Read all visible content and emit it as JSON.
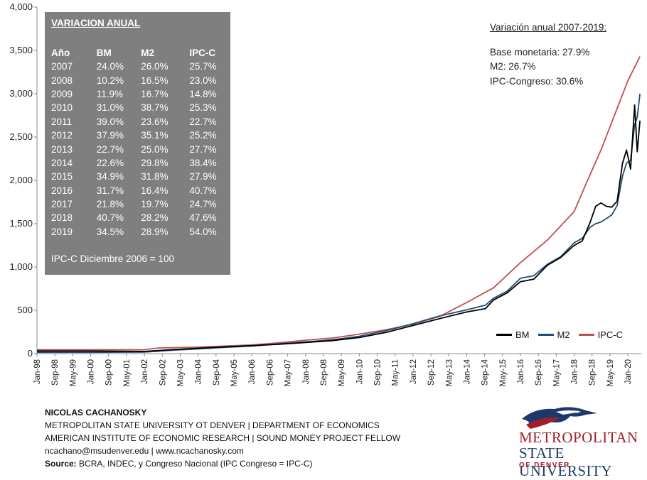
{
  "chart_data": {
    "type": "line",
    "ylim": [
      0,
      4000
    ],
    "y_ticks": [
      "0",
      "500",
      "1,000",
      "1,500",
      "2,000",
      "2,500",
      "3,000",
      "3,500",
      "4,000"
    ],
    "x_ticks": [
      "Jan-98",
      "Sep-98",
      "May-99",
      "Jan-00",
      "Sep-00",
      "May-01",
      "Jan-02",
      "Sep-02",
      "May-03",
      "Jan-04",
      "Sep-04",
      "May-05",
      "Jan-06",
      "Sep-06",
      "May-07",
      "Jan-08",
      "Sep-08",
      "May-09",
      "Jan-10",
      "Sep-10",
      "May-11",
      "Jan-12",
      "Sep-12",
      "May-13",
      "Jan-14",
      "Sep-14",
      "May-15",
      "Jan-16",
      "Sep-16",
      "May-17",
      "Jan-18",
      "Sep-18",
      "May-19",
      "Jan-20"
    ],
    "grid": false,
    "legend": "bottom-right",
    "series": [
      {
        "name": "BM",
        "color": "#000000",
        "points": [
          [
            1998.0,
            30
          ],
          [
            2000.0,
            30
          ],
          [
            2002.0,
            25
          ],
          [
            2003.0,
            45
          ],
          [
            2004.0,
            62
          ],
          [
            2005.0,
            78
          ],
          [
            2006.0,
            92
          ],
          [
            2007.0,
            108
          ],
          [
            2008.0,
            128
          ],
          [
            2009.0,
            150
          ],
          [
            2010.0,
            185
          ],
          [
            2011.0,
            245
          ],
          [
            2012.0,
            325
          ],
          [
            2013.0,
            405
          ],
          [
            2014.0,
            480
          ],
          [
            2014.7,
            520
          ],
          [
            2015.0,
            620
          ],
          [
            2015.5,
            700
          ],
          [
            2016.0,
            830
          ],
          [
            2016.5,
            860
          ],
          [
            2017.0,
            1020
          ],
          [
            2017.5,
            1110
          ],
          [
            2018.0,
            1250
          ],
          [
            2018.3,
            1300
          ],
          [
            2018.6,
            1520
          ],
          [
            2018.8,
            1700
          ],
          [
            2019.0,
            1740
          ],
          [
            2019.2,
            1700
          ],
          [
            2019.4,
            1690
          ],
          [
            2019.6,
            1760
          ],
          [
            2019.8,
            2200
          ],
          [
            2019.95,
            2350
          ],
          [
            2020.1,
            2130
          ],
          [
            2020.25,
            2870
          ],
          [
            2020.35,
            2330
          ],
          [
            2020.45,
            2690
          ]
        ]
      },
      {
        "name": "M2",
        "color": "#1f4e79",
        "points": [
          [
            1998.0,
            15
          ],
          [
            2000.0,
            15
          ],
          [
            2002.0,
            18
          ],
          [
            2003.0,
            38
          ],
          [
            2004.0,
            55
          ],
          [
            2005.0,
            72
          ],
          [
            2006.0,
            88
          ],
          [
            2007.0,
            112
          ],
          [
            2008.0,
            135
          ],
          [
            2009.0,
            160
          ],
          [
            2010.0,
            200
          ],
          [
            2011.0,
            265
          ],
          [
            2012.0,
            345
          ],
          [
            2013.0,
            435
          ],
          [
            2014.0,
            505
          ],
          [
            2014.7,
            560
          ],
          [
            2015.0,
            640
          ],
          [
            2015.5,
            720
          ],
          [
            2016.0,
            870
          ],
          [
            2016.5,
            900
          ],
          [
            2017.0,
            1030
          ],
          [
            2017.5,
            1120
          ],
          [
            2018.0,
            1280
          ],
          [
            2018.3,
            1330
          ],
          [
            2018.6,
            1460
          ],
          [
            2018.8,
            1500
          ],
          [
            2019.0,
            1520
          ],
          [
            2019.2,
            1560
          ],
          [
            2019.4,
            1600
          ],
          [
            2019.6,
            1710
          ],
          [
            2019.8,
            2050
          ],
          [
            2019.95,
            2200
          ],
          [
            2020.1,
            2230
          ],
          [
            2020.25,
            2640
          ],
          [
            2020.35,
            2730
          ],
          [
            2020.45,
            3000
          ]
        ]
      },
      {
        "name": "IPC-C",
        "color": "#c0504d",
        "points": [
          [
            1998.0,
            45
          ],
          [
            2002.0,
            45
          ],
          [
            2002.5,
            65
          ],
          [
            2004.0,
            75
          ],
          [
            2006.0,
            100
          ],
          [
            2007.0,
            125
          ],
          [
            2008.0,
            155
          ],
          [
            2009.0,
            180
          ],
          [
            2010.0,
            225
          ],
          [
            2011.0,
            275
          ],
          [
            2012.0,
            340
          ],
          [
            2013.0,
            430
          ],
          [
            2014.0,
            590
          ],
          [
            2015.0,
            760
          ],
          [
            2016.0,
            1050
          ],
          [
            2017.0,
            1310
          ],
          [
            2018.0,
            1640
          ],
          [
            2018.5,
            2000
          ],
          [
            2019.0,
            2350
          ],
          [
            2019.5,
            2750
          ],
          [
            2020.0,
            3150
          ],
          [
            2020.45,
            3430
          ]
        ]
      }
    ]
  },
  "table": {
    "title": "VARIACION ANUAL",
    "headers": [
      "Año",
      "BM",
      "M2",
      "IPC-C"
    ],
    "rows": [
      [
        "2007",
        "24.0%",
        "26.0%",
        "25.7%"
      ],
      [
        "2008",
        "10.2%",
        "16.5%",
        "23.0%"
      ],
      [
        "2009",
        "11.9%",
        "16.7%",
        "14.8%"
      ],
      [
        "2010",
        "31.0%",
        "38.7%",
        "25.3%"
      ],
      [
        "2011",
        "39.0%",
        "23.6%",
        "22.7%"
      ],
      [
        "2012",
        "37.9%",
        "35.1%",
        "25.2%"
      ],
      [
        "2013",
        "22.7%",
        "25.0%",
        "27.7%"
      ],
      [
        "2014",
        "22.6%",
        "29.8%",
        "38.4%"
      ],
      [
        "2015",
        "34.9%",
        "31.8%",
        "27.9%"
      ],
      [
        "2016",
        "31.7%",
        "16.4%",
        "40.7%"
      ],
      [
        "2017",
        "21.8%",
        "19.7%",
        "24.7%"
      ],
      [
        "2018",
        "40.7%",
        "28.2%",
        "47.6%"
      ],
      [
        "2019",
        "34.5%",
        "28.9%",
        "54.0%"
      ]
    ],
    "note": "IPC-C Diciembre 2006 = 100"
  },
  "summary": {
    "title": "Variación anual  2007-2019:",
    "lines": [
      "Base monetaria: 27.9%",
      "M2: 26.7%",
      "IPC-Congreso: 30.6%"
    ]
  },
  "footer": {
    "name": "NICOLAS CACHANOSKY",
    "line1": "METROPOLITAN STATE UNIVERSITY OT DENVER | DEPARTMENT OF ECONOMICS",
    "line2": "AMERICAN INSTITUTE OF ECONOMIC RESEARCH | SOUND MONEY PROJECT FELLOW",
    "line3": "ncachano@msudenver.edu  |  www.ncachanosky.com",
    "source_label": "Source:",
    "source_text": " BCRA, INDEC, y Congreso Nacional (IPC Congreso = IPC-C)"
  },
  "logo": {
    "line1": "METROPOLITAN",
    "line2": "STATE UNIVERSITY",
    "line3": "OF DENVER",
    "icon": "roadrunner-logo-icon"
  }
}
